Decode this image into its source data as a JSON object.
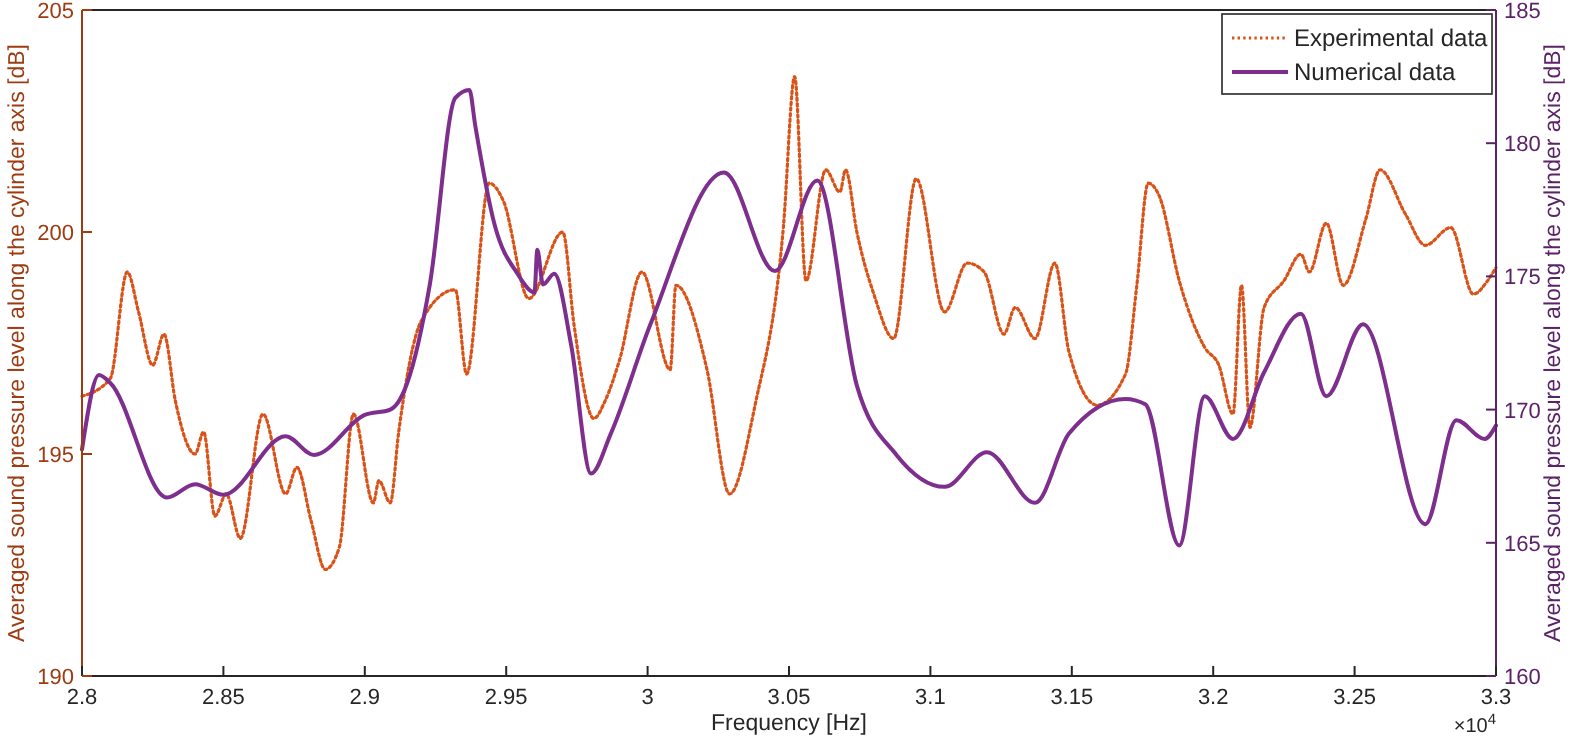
{
  "chart_data": {
    "type": "line",
    "xlabel": "Frequency [Hz]",
    "ylabel": "Averaged sound pressure level along the cylinder axis [dB]",
    "y2label": "Averaged sound pressure level along the cylinder axis [dB]",
    "xlim": [
      2.8,
      3.3
    ],
    "xticks": [
      2.8,
      2.85,
      2.9,
      2.95,
      3,
      3.05,
      3.1,
      3.15,
      3.2,
      3.25,
      3.3
    ],
    "ylim": [
      190,
      205
    ],
    "yticks": [
      190,
      195,
      200,
      205
    ],
    "y2lim": [
      160,
      185
    ],
    "y2ticks": [
      160,
      165,
      170,
      175,
      180,
      185
    ],
    "legend": "top right",
    "grid": false,
    "annotations": [
      "×10$^{4}$"
    ],
    "series": [
      {
        "name": "Experimental data",
        "color": "#d95319",
        "line_style": "dotted",
        "x": [
          2.8,
          2.81,
          2.816,
          2.82,
          2.825,
          2.829,
          2.833,
          2.84,
          2.843,
          2.847,
          2.851,
          2.856,
          2.864,
          2.872,
          2.876,
          2.881,
          2.886,
          2.891,
          2.896,
          2.903,
          2.905,
          2.909,
          2.912,
          2.92,
          2.932,
          2.936,
          2.944,
          2.949,
          2.958,
          2.97,
          2.974,
          2.981,
          2.985,
          2.99,
          2.998,
          3.008,
          3.01,
          3.021,
          3.029,
          3.038,
          3.048,
          3.052,
          3.056,
          3.063,
          3.068,
          3.07,
          3.074,
          3.08,
          3.087,
          3.095,
          3.105,
          3.113,
          3.119,
          3.126,
          3.13,
          3.137,
          3.144,
          3.149,
          3.159,
          3.169,
          3.173,
          3.177,
          3.181,
          3.188,
          3.197,
          3.202,
          3.207,
          3.21,
          3.213,
          3.218,
          3.225,
          3.231,
          3.234,
          3.24,
          3.246,
          3.254,
          3.259,
          3.268,
          3.275,
          3.284,
          3.292,
          3.297,
          3.3
        ],
        "values": [
          196.3,
          196.7,
          199.1,
          198.2,
          197.0,
          197.7,
          196.2,
          195.0,
          195.5,
          193.6,
          194.1,
          193.1,
          195.9,
          194.1,
          194.7,
          193.5,
          192.4,
          192.9,
          195.9,
          193.9,
          194.4,
          193.9,
          195.5,
          198.0,
          198.7,
          196.8,
          201.1,
          200.7,
          198.5,
          200.0,
          197.9,
          195.8,
          196.2,
          197.1,
          199.1,
          196.9,
          198.8,
          196.9,
          194.1,
          196.1,
          200.1,
          203.5,
          198.9,
          201.4,
          200.9,
          201.4,
          200.0,
          198.6,
          197.6,
          201.2,
          198.2,
          199.3,
          199.1,
          197.7,
          198.3,
          197.6,
          199.3,
          197.3,
          196.1,
          196.8,
          198.8,
          201.1,
          200.8,
          198.9,
          197.4,
          197.0,
          195.9,
          198.8,
          195.6,
          198.3,
          198.9,
          199.5,
          199.1,
          200.2,
          198.8,
          200.3,
          201.4,
          200.4,
          199.7,
          200.1,
          198.6,
          198.9,
          199.2
        ]
      },
      {
        "name": "Numerical data",
        "color": "#7e2f8e",
        "line_style": "solid",
        "axis": "y2",
        "x": [
          2.8,
          2.806,
          2.81,
          2.83,
          2.84,
          2.85,
          2.872,
          2.882,
          2.9,
          2.909,
          2.915,
          2.923,
          2.932,
          2.937,
          2.939,
          2.946,
          2.954,
          2.96,
          2.961,
          2.963,
          2.967,
          2.973,
          2.98,
          2.987,
          3.001,
          3.027,
          3.045,
          3.06,
          3.074,
          3.088,
          3.105,
          3.12,
          3.137,
          3.149,
          3.169,
          3.176,
          3.188,
          3.197,
          3.207,
          3.218,
          3.231,
          3.24,
          3.253,
          3.275,
          3.286,
          3.296,
          3.3
        ],
        "values": [
          168.5,
          171.3,
          171.0,
          166.7,
          167.2,
          166.8,
          169.0,
          168.3,
          169.8,
          170.0,
          171.0,
          174.7,
          181.7,
          182.0,
          180.7,
          176.9,
          175.1,
          174.4,
          176.0,
          174.7,
          175.1,
          172.4,
          167.6,
          169.1,
          173.2,
          178.9,
          175.2,
          178.6,
          170.9,
          168.3,
          167.1,
          168.4,
          166.5,
          169.1,
          170.4,
          170.2,
          164.9,
          170.5,
          168.9,
          171.4,
          173.6,
          170.5,
          173.2,
          165.7,
          169.6,
          168.9,
          169.4
        ]
      }
    ]
  }
}
